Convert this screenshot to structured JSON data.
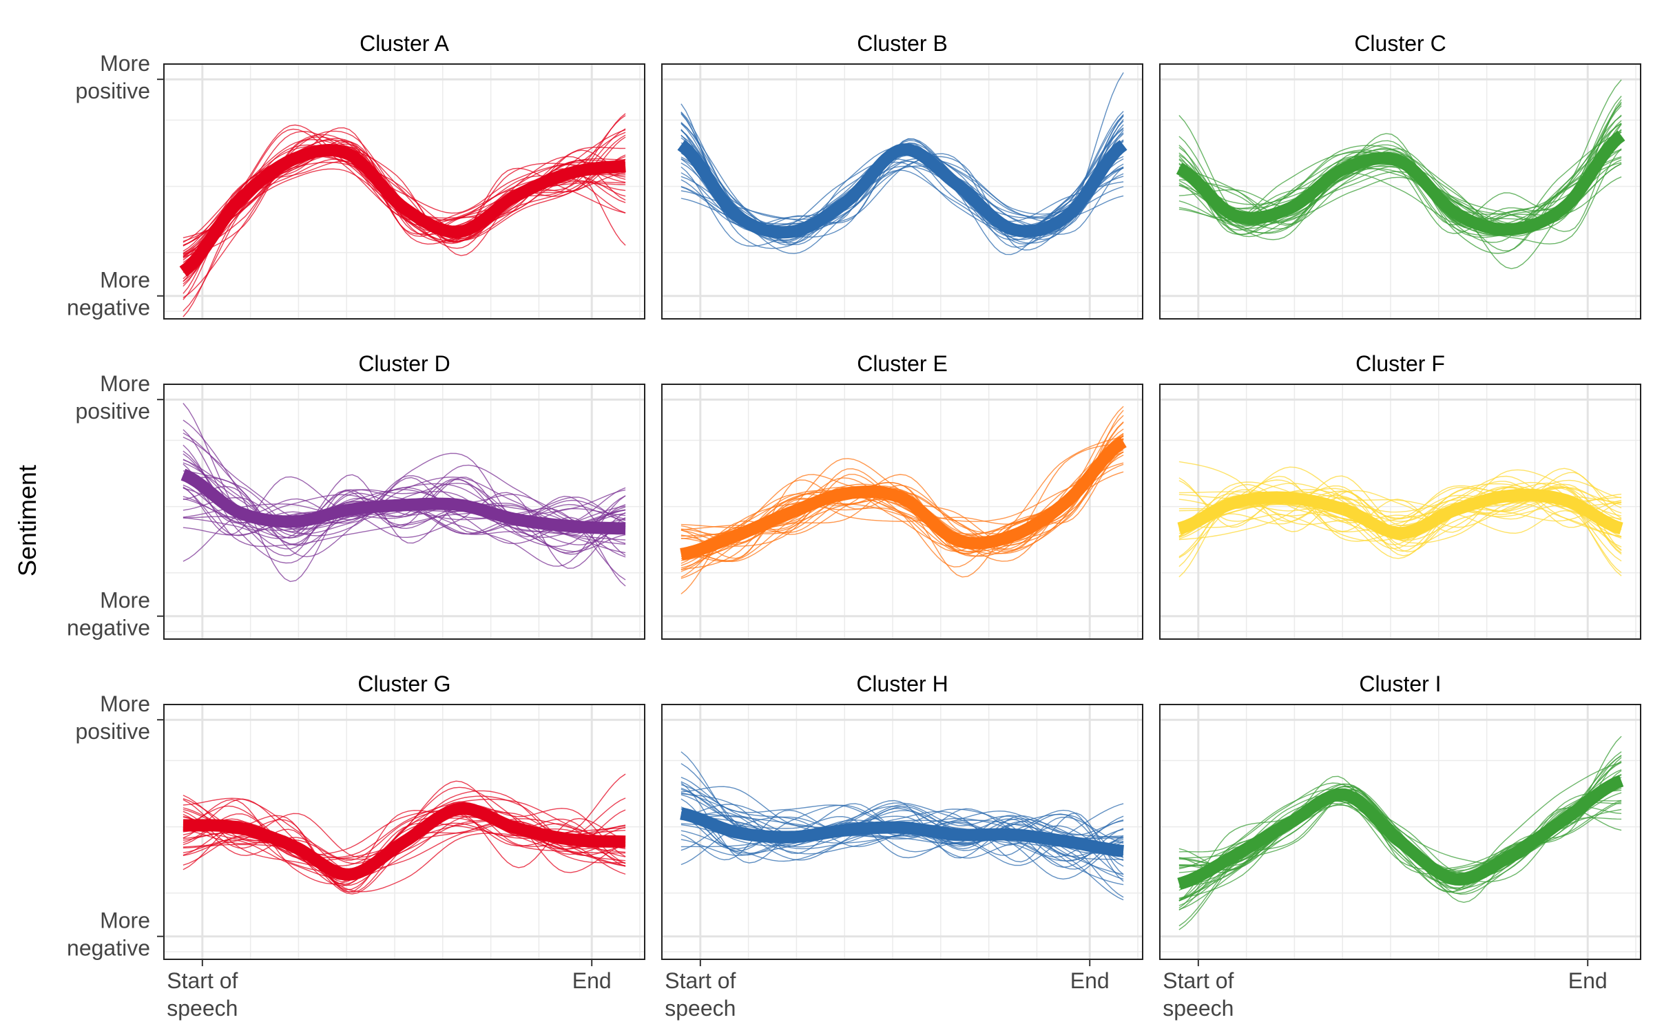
{
  "chart_data": {
    "type": "line",
    "y_axis_label": "Sentiment",
    "y_tick_labels": {
      "top": [
        "More",
        "positive"
      ],
      "bottom": [
        "More",
        "negative"
      ]
    },
    "x_tick_labels": {
      "start": [
        "Start of",
        "speech"
      ],
      "end": [
        "End"
      ]
    },
    "x_range": [
      0,
      1
    ],
    "y_range": [
      0,
      1
    ],
    "grid": true,
    "panels": [
      {
        "title": "Cluster A",
        "color": "#E3001B",
        "x": [
          0.0,
          0.125,
          0.25,
          0.375,
          0.5,
          0.625,
          0.75,
          0.875,
          1.0
        ],
        "mean": [
          0.18,
          0.48,
          0.66,
          0.68,
          0.45,
          0.35,
          0.5,
          0.6,
          0.63
        ],
        "n_members": 30,
        "spread": 0.05,
        "end_spread": 0.1
      },
      {
        "title": "Cluster B",
        "color": "#2B6AAD",
        "x": [
          0.0,
          0.125,
          0.25,
          0.375,
          0.5,
          0.625,
          0.75,
          0.875,
          1.0
        ],
        "mean": [
          0.72,
          0.42,
          0.35,
          0.48,
          0.7,
          0.55,
          0.36,
          0.42,
          0.72
        ],
        "n_members": 30,
        "spread": 0.045,
        "end_spread": 0.12
      },
      {
        "title": "Cluster C",
        "color": "#3A9E35",
        "x": [
          0.0,
          0.125,
          0.25,
          0.375,
          0.5,
          0.625,
          0.75,
          0.875,
          1.0
        ],
        "mean": [
          0.62,
          0.42,
          0.45,
          0.62,
          0.65,
          0.43,
          0.36,
          0.46,
          0.76
        ],
        "n_members": 30,
        "spread": 0.05,
        "end_spread": 0.1
      },
      {
        "title": "Cluster D",
        "color": "#7B3294",
        "x": [
          0.0,
          0.125,
          0.25,
          0.375,
          0.5,
          0.625,
          0.75,
          0.875,
          1.0
        ],
        "mean": [
          0.68,
          0.52,
          0.48,
          0.53,
          0.55,
          0.55,
          0.49,
          0.46,
          0.45
        ],
        "n_members": 30,
        "spread": 0.08,
        "end_spread": 0.12
      },
      {
        "title": "Cluster E",
        "color": "#FF7412",
        "x": [
          0.0,
          0.125,
          0.25,
          0.375,
          0.5,
          0.625,
          0.75,
          0.875,
          1.0
        ],
        "mean": [
          0.34,
          0.42,
          0.52,
          0.6,
          0.58,
          0.4,
          0.42,
          0.57,
          0.82
        ],
        "n_members": 30,
        "spread": 0.05,
        "end_spread": 0.08
      },
      {
        "title": "Cluster F",
        "color": "#FDD834",
        "x": [
          0.0,
          0.125,
          0.25,
          0.375,
          0.5,
          0.625,
          0.75,
          0.875,
          1.0
        ],
        "mean": [
          0.45,
          0.56,
          0.58,
          0.53,
          0.43,
          0.53,
          0.59,
          0.57,
          0.45
        ],
        "n_members": 30,
        "spread": 0.06,
        "end_spread": 0.1
      },
      {
        "title": "Cluster G",
        "color": "#E3001B",
        "x": [
          0.0,
          0.125,
          0.25,
          0.375,
          0.5,
          0.625,
          0.75,
          0.875,
          1.0
        ],
        "mean": [
          0.55,
          0.54,
          0.46,
          0.34,
          0.48,
          0.62,
          0.54,
          0.49,
          0.48
        ],
        "n_members": 30,
        "spread": 0.06,
        "end_spread": 0.1
      },
      {
        "title": "Cluster H",
        "color": "#2B6AAD",
        "x": [
          0.0,
          0.125,
          0.25,
          0.375,
          0.5,
          0.625,
          0.75,
          0.875,
          1.0
        ],
        "mean": [
          0.6,
          0.52,
          0.5,
          0.53,
          0.54,
          0.51,
          0.51,
          0.48,
          0.44
        ],
        "n_members": 30,
        "spread": 0.06,
        "end_spread": 0.1
      },
      {
        "title": "Cluster I",
        "color": "#3A9E35",
        "x": [
          0.0,
          0.125,
          0.25,
          0.375,
          0.5,
          0.625,
          0.75,
          0.875,
          1.0
        ],
        "mean": [
          0.3,
          0.42,
          0.56,
          0.68,
          0.48,
          0.32,
          0.42,
          0.58,
          0.74
        ],
        "n_members": 30,
        "spread": 0.04,
        "end_spread": 0.08
      }
    ]
  }
}
